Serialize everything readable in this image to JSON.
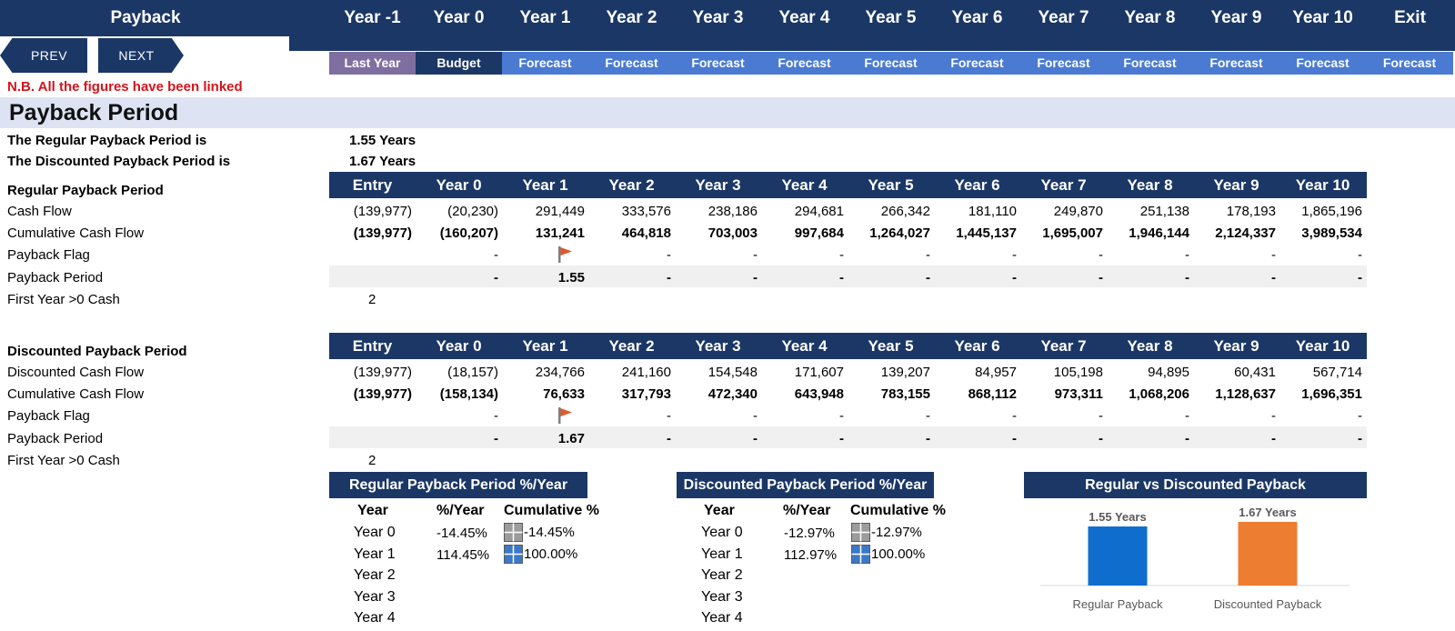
{
  "header": {
    "title": "Payback",
    "years": [
      "Year -1",
      "Year 0",
      "Year 1",
      "Year 2",
      "Year 3",
      "Year 4",
      "Year 5",
      "Year 6",
      "Year 7",
      "Year 8",
      "Year 9",
      "Year 10"
    ],
    "exit_label": "Exit",
    "sub_labels": [
      "Last Year",
      "Budget",
      "Forecast",
      "Forecast",
      "Forecast",
      "Forecast",
      "Forecast",
      "Forecast",
      "Forecast",
      "Forecast",
      "Forecast",
      "Forecast",
      "Forecast"
    ],
    "sub_colors": {
      "last_year": "#7f6fa0",
      "budget": "#1b3766",
      "forecast": "#4a7ad2"
    }
  },
  "nav": {
    "prev_label": "PREV",
    "next_label": "NEXT"
  },
  "note": "N.B. All the figures have been linked",
  "page_title": "Payback Period",
  "summary": {
    "regular_label": "The Regular Payback Period is",
    "regular_value": "1.55 Years",
    "discounted_label": "The Discounted Payback Period is",
    "discounted_value": "1.67 Years"
  },
  "regular": {
    "section_label": "Regular Payback Period",
    "columns": [
      "Entry",
      "Year 0",
      "Year 1",
      "Year 2",
      "Year 3",
      "Year 4",
      "Year 5",
      "Year 6",
      "Year 7",
      "Year 8",
      "Year 9",
      "Year 10"
    ],
    "row_labels": {
      "cash_flow": "Cash Flow",
      "cumulative": "Cumulative Cash Flow",
      "flag": "Payback Flag",
      "period": "Payback Period",
      "first_year": "First Year >0 Cash"
    },
    "cash_flow": [
      "(139,977)",
      "(20,230)",
      "291,449",
      "333,576",
      "238,186",
      "294,681",
      "266,342",
      "181,110",
      "249,870",
      "251,138",
      "178,193",
      "1,865,196"
    ],
    "cumulative": [
      "(139,977)",
      "(160,207)",
      "131,241",
      "464,818",
      "703,003",
      "997,684",
      "1,264,027",
      "1,445,137",
      "1,695,007",
      "1,946,144",
      "2,124,337",
      "3,989,534"
    ],
    "flag": [
      "-",
      "",
      "-",
      "-",
      "-",
      "-",
      "-",
      "-",
      "-",
      "-",
      "-"
    ],
    "period": [
      "-",
      "1.55",
      "-",
      "-",
      "-",
      "-",
      "-",
      "-",
      "-",
      "-",
      "-"
    ],
    "first_year_value": "2"
  },
  "discounted": {
    "section_label": "Discounted Payback Period",
    "columns": [
      "Entry",
      "Year 0",
      "Year 1",
      "Year 2",
      "Year 3",
      "Year 4",
      "Year 5",
      "Year 6",
      "Year 7",
      "Year 8",
      "Year 9",
      "Year 10"
    ],
    "row_labels": {
      "cash_flow": "Discounted Cash Flow",
      "cumulative": "Cumulative Cash Flow",
      "flag": "Payback Flag",
      "period": "Payback Period",
      "first_year": "First Year >0 Cash"
    },
    "cash_flow": [
      "(139,977)",
      "(18,157)",
      "234,766",
      "241,160",
      "154,548",
      "171,607",
      "139,207",
      "84,957",
      "105,198",
      "94,895",
      "60,431",
      "567,714"
    ],
    "cumulative": [
      "(139,977)",
      "(158,134)",
      "76,633",
      "317,793",
      "472,340",
      "643,948",
      "783,155",
      "868,112",
      "973,311",
      "1,068,206",
      "1,128,637",
      "1,696,351"
    ],
    "flag": [
      "-",
      "",
      "-",
      "-",
      "-",
      "-",
      "-",
      "-",
      "-",
      "-",
      "-"
    ],
    "period": [
      "-",
      "1.67",
      "-",
      "-",
      "-",
      "-",
      "-",
      "-",
      "-",
      "-",
      "-"
    ],
    "first_year_value": "2"
  },
  "regular_pct": {
    "title": "Regular Payback Period %/Year",
    "col_year": "Year",
    "col_pct": "%/Year",
    "col_cum": "Cumulative %",
    "years": [
      "Year 0",
      "Year 1",
      "Year 2",
      "Year 3",
      "Year 4"
    ],
    "pct": [
      "-14.45%",
      "114.45%"
    ],
    "cum": [
      "-14.45%",
      "100.00%"
    ]
  },
  "discounted_pct": {
    "title": "Discounted Payback Period %/Year",
    "col_year": "Year",
    "col_pct": "%/Year",
    "col_cum": "Cumulative %",
    "years": [
      "Year 0",
      "Year 1",
      "Year 2",
      "Year 3",
      "Year 4"
    ],
    "pct": [
      "-12.97%",
      "112.97%"
    ],
    "cum": [
      "-12.97%",
      "100.00%"
    ]
  },
  "chart_data": {
    "type": "bar",
    "title": "Regular vs Discounted Payback",
    "categories": [
      "Regular Payback",
      "Discounted Payback"
    ],
    "values": [
      1.55,
      1.67
    ],
    "data_labels": [
      "1.55 Years",
      "1.67 Years"
    ],
    "colors": [
      "#0f6ecd",
      "#ed7d31"
    ],
    "ylim": [
      0,
      1.67
    ],
    "grid": false,
    "legend": "none"
  }
}
